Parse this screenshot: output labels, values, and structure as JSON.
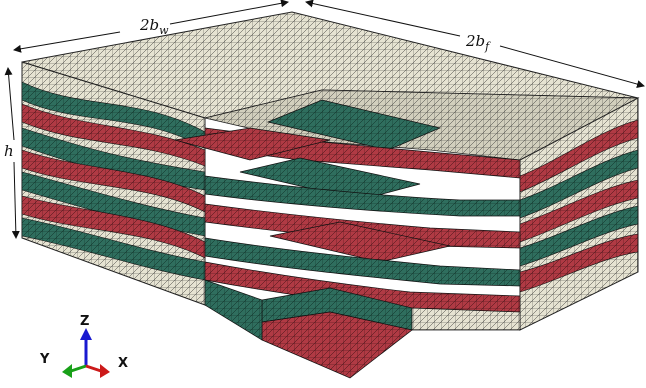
{
  "figure": {
    "dimensions": {
      "width_label": "2b_w",
      "depth_label": "2b_f",
      "height_label": "h"
    },
    "axes": {
      "z": "Z",
      "y": "Y",
      "x": "X"
    },
    "colors": {
      "matrix": "#e6e3d2",
      "warp_yarn": "#2f6e5e",
      "weft_yarn": "#b03a44",
      "mesh_line": "#1a1a1a",
      "axis_z": "#1a1ad0",
      "axis_y": "#18a018",
      "axis_x": "#cc1a1a"
    }
  }
}
